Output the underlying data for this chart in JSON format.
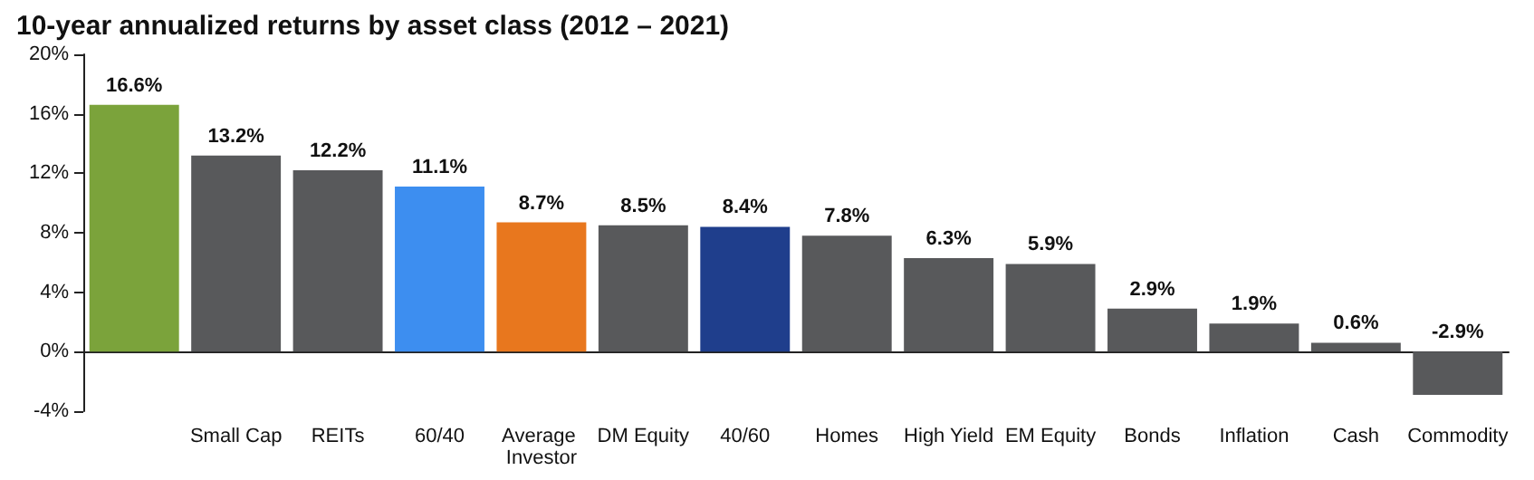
{
  "chart_data": {
    "type": "bar",
    "title": "10-year annualized returns by asset class (2012 – 2021)",
    "categories": [
      null,
      "Small Cap",
      "REITs",
      "60/40",
      "Average Investor",
      "DM Equity",
      "40/60",
      "Homes",
      "High Yield",
      "EM Equity",
      "Bonds",
      "Inflation",
      "Cash",
      "Commodity"
    ],
    "values": [
      16.6,
      13.2,
      12.2,
      11.1,
      8.7,
      8.5,
      8.4,
      7.8,
      6.3,
      5.9,
      2.9,
      1.9,
      0.6,
      -2.9
    ],
    "colors": [
      "#7ba33b",
      "#58595b",
      "#58595b",
      "#3d8ef0",
      "#e8771e",
      "#58595b",
      "#1f3e8c",
      "#58595b",
      "#58595b",
      "#58595b",
      "#58595b",
      "#58595b",
      "#58595b",
      "#58595b"
    ],
    "value_labels": [
      "16.6%",
      "13.2%",
      "12.2%",
      "11.1%",
      "8.7%",
      "8.5%",
      "8.4%",
      "7.8%",
      "6.3%",
      "5.9%",
      "2.9%",
      "1.9%",
      "0.6%",
      "-2.9%"
    ],
    "ylim": [
      -4,
      20
    ],
    "yticks": [
      {
        "value": -4,
        "label": "-4%"
      },
      {
        "value": 0,
        "label": "0%"
      },
      {
        "value": 4,
        "label": "4%"
      },
      {
        "value": 8,
        "label": "8%"
      },
      {
        "value": 12,
        "label": "12%"
      },
      {
        "value": 16,
        "label": "16%"
      },
      {
        "value": 20,
        "label": "20%"
      }
    ]
  }
}
